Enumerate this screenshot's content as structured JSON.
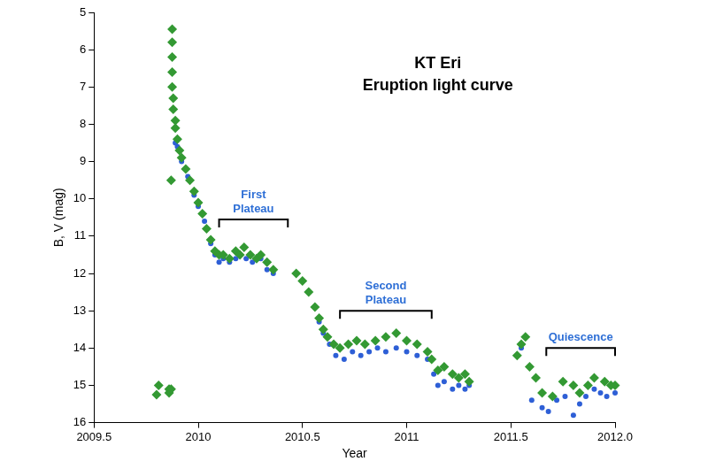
{
  "chart_data": {
    "type": "scatter",
    "title": [
      "KT Eri",
      "Eruption light curve"
    ],
    "x_label": "Year",
    "y_label": "B, V (mag)",
    "xlim": [
      2009.5,
      2012.0
    ],
    "xticks": [
      2009.5,
      2010,
      2010.5,
      2011,
      2011.5,
      {
        "value": 2012.0,
        "label": "2012.0"
      }
    ],
    "ylim": [
      16,
      5
    ],
    "yticks": [
      5,
      6,
      7,
      8,
      9,
      10,
      11,
      12,
      13,
      14,
      15,
      16
    ],
    "grid": false,
    "series": [
      {
        "color": "#339933",
        "marker": "diamond",
        "x": [
          2009.8,
          2009.81,
          2009.86,
          2009.86,
          2009.87,
          2009.87,
          2009.875,
          2009.875,
          2009.875,
          2009.875,
          2009.875,
          2009.88,
          2009.88,
          2009.89,
          2009.89,
          2009.9,
          2009.91,
          2009.92,
          2009.94,
          2009.96,
          2009.98,
          2010.0,
          2010.02,
          2010.04,
          2010.06,
          2010.08,
          2010.1,
          2010.12,
          2010.15,
          2010.18,
          2010.2,
          2010.22,
          2010.25,
          2010.28,
          2010.3,
          2010.33,
          2010.36,
          2010.47,
          2010.5,
          2010.53,
          2010.56,
          2010.58,
          2010.6,
          2010.62,
          2010.65,
          2010.68,
          2010.72,
          2010.76,
          2010.8,
          2010.85,
          2010.9,
          2010.95,
          2011.0,
          2011.05,
          2011.1,
          2011.12,
          2011.15,
          2011.18,
          2011.22,
          2011.25,
          2011.28,
          2011.3,
          2011.53,
          2011.55,
          2011.57,
          2011.59,
          2011.62,
          2011.65,
          2011.7,
          2011.75,
          2011.8,
          2011.83,
          2011.87,
          2011.9,
          2011.95,
          2011.98,
          2012.0
        ],
        "values": [
          15.25,
          15.0,
          15.1,
          15.2,
          15.1,
          9.5,
          5.45,
          5.8,
          6.2,
          6.6,
          7.0,
          7.3,
          7.6,
          7.9,
          8.1,
          8.4,
          8.7,
          8.9,
          9.2,
          9.5,
          9.8,
          10.1,
          10.4,
          10.8,
          11.1,
          11.4,
          11.5,
          11.5,
          11.6,
          11.4,
          11.5,
          11.3,
          11.5,
          11.6,
          11.5,
          11.7,
          11.9,
          12.0,
          12.2,
          12.5,
          12.9,
          13.2,
          13.5,
          13.7,
          13.9,
          14.0,
          13.9,
          13.8,
          13.9,
          13.8,
          13.7,
          13.6,
          13.8,
          13.9,
          14.1,
          14.3,
          14.6,
          14.5,
          14.7,
          14.8,
          14.7,
          14.9,
          14.2,
          13.9,
          13.7,
          14.5,
          14.8,
          15.2,
          15.3,
          14.9,
          15.0,
          15.2,
          15.0,
          14.8,
          14.9,
          15.0,
          15.0
        ]
      },
      {
        "color": "#2e5fd6",
        "marker": "circle",
        "x": [
          2009.89,
          2009.9,
          2009.92,
          2009.95,
          2009.98,
          2010.0,
          2010.03,
          2010.06,
          2010.08,
          2010.1,
          2010.12,
          2010.15,
          2010.18,
          2010.2,
          2010.23,
          2010.26,
          2010.3,
          2010.33,
          2010.36,
          2010.58,
          2010.6,
          2010.63,
          2010.66,
          2010.7,
          2010.74,
          2010.78,
          2010.82,
          2010.86,
          2010.9,
          2010.95,
          2011.0,
          2011.05,
          2011.1,
          2011.13,
          2011.15,
          2011.18,
          2011.22,
          2011.25,
          2011.28,
          2011.3,
          2011.55,
          2011.6,
          2011.65,
          2011.68,
          2011.72,
          2011.76,
          2011.8,
          2011.83,
          2011.86,
          2011.9,
          2011.93,
          2011.96,
          2012.0
        ],
        "values": [
          8.5,
          8.6,
          9.0,
          9.4,
          9.9,
          10.2,
          10.6,
          11.2,
          11.5,
          11.7,
          11.6,
          11.7,
          11.6,
          11.5,
          11.6,
          11.7,
          11.6,
          11.9,
          12.0,
          13.3,
          13.6,
          13.9,
          14.2,
          14.3,
          14.1,
          14.2,
          14.1,
          14.0,
          14.1,
          14.0,
          14.1,
          14.2,
          14.3,
          14.7,
          15.0,
          14.9,
          15.1,
          15.0,
          15.1,
          15.0,
          14.0,
          15.4,
          15.6,
          15.7,
          15.4,
          15.3,
          15.8,
          15.5,
          15.3,
          15.1,
          15.2,
          15.3,
          15.2
        ]
      }
    ],
    "annotations": [
      {
        "text": [
          "First",
          "Plateau"
        ],
        "x": [
          2010.1,
          2010.43
        ],
        "y": 10.55
      },
      {
        "text": [
          "Second",
          "Plateau"
        ],
        "x": [
          2010.68,
          2011.12
        ],
        "y": 13.0
      },
      {
        "text": [
          "Quiescence"
        ],
        "x": [
          2011.67,
          2012.0
        ],
        "y": 14.0
      }
    ]
  }
}
